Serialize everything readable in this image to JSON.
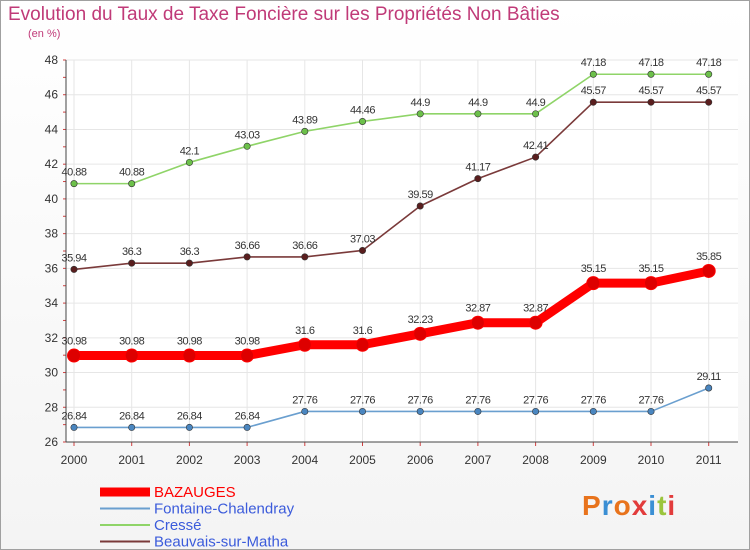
{
  "title": "Evolution du Taux de Taxe Foncière sur les Propriétés Non Bâties",
  "unit": "(en %)",
  "logo": {
    "text": "Proxiti",
    "colors": [
      "#e8731c",
      "#3b8fd4",
      "#e8731c",
      "#e23c3c",
      "#3b8fd4",
      "#9bc53d",
      "#e23c3c"
    ]
  },
  "chart_data": {
    "type": "line",
    "title": "Evolution du Taux de Taxe Foncière sur les Propriétés Non Bâties",
    "ylabel": "(en %)",
    "xlabel": "",
    "ylim": [
      26,
      48
    ],
    "yticks": [
      26,
      28,
      30,
      32,
      34,
      36,
      38,
      40,
      42,
      44,
      46,
      48
    ],
    "x": [
      "2000",
      "2001",
      "2002",
      "2003",
      "2004",
      "2005",
      "2006",
      "2007",
      "2008",
      "2009",
      "2010",
      "2011"
    ],
    "grid": true,
    "legend": "bottom-left",
    "series": [
      {
        "name": "BAZAUGES",
        "color": "#ff0000",
        "dot": "#dd0000",
        "legendColor": "#ff0000",
        "values": [
          30.98,
          30.98,
          30.98,
          30.98,
          31.6,
          31.6,
          32.23,
          32.87,
          32.87,
          35.15,
          35.15,
          35.85
        ],
        "labels": [
          "30.98",
          "30.98",
          "30.98",
          "30.98",
          "31.6",
          "31.6",
          "32.23",
          "32.87",
          "32.87",
          "35.15",
          "35.15",
          "35.85"
        ]
      },
      {
        "name": "Fontaine-Chalendray",
        "color": "#6a9fcf",
        "dot": "#4a86c0",
        "legendColor": "#3b5bdb",
        "values": [
          26.84,
          26.84,
          26.84,
          26.84,
          27.76,
          27.76,
          27.76,
          27.76,
          27.76,
          27.76,
          27.76,
          29.11
        ],
        "labels": [
          "26.84",
          "26.84",
          "26.84",
          "26.84",
          "27.76",
          "27.76",
          "27.76",
          "27.76",
          "27.76",
          "27.76",
          "27.76",
          "29.11"
        ]
      },
      {
        "name": "Cressé",
        "color": "#8fd468",
        "dot": "#6cc04a",
        "legendColor": "#3b5bdb",
        "values": [
          40.88,
          40.88,
          42.1,
          43.03,
          43.89,
          44.46,
          44.9,
          44.9,
          44.9,
          47.18,
          47.18,
          47.18
        ],
        "labels": [
          "40.88",
          "40.88",
          "42.1",
          "43.03",
          "43.89",
          "44.46",
          "44.9",
          "44.9",
          "44.9",
          "47.18",
          "47.18",
          "47.18"
        ]
      },
      {
        "name": "Beauvais-sur-Matha",
        "color": "#7a3a3a",
        "dot": "#5a1e1e",
        "legendColor": "#3b5bdb",
        "values": [
          35.94,
          36.3,
          36.3,
          36.66,
          36.66,
          37.03,
          39.59,
          41.17,
          42.41,
          45.57,
          45.57,
          45.57
        ],
        "labels": [
          "35.94",
          "36.3",
          "36.3",
          "36.66",
          "36.66",
          "37.03",
          "39.59",
          "41.17",
          "42.41",
          "45.57",
          "45.57",
          "45.57"
        ]
      }
    ]
  }
}
